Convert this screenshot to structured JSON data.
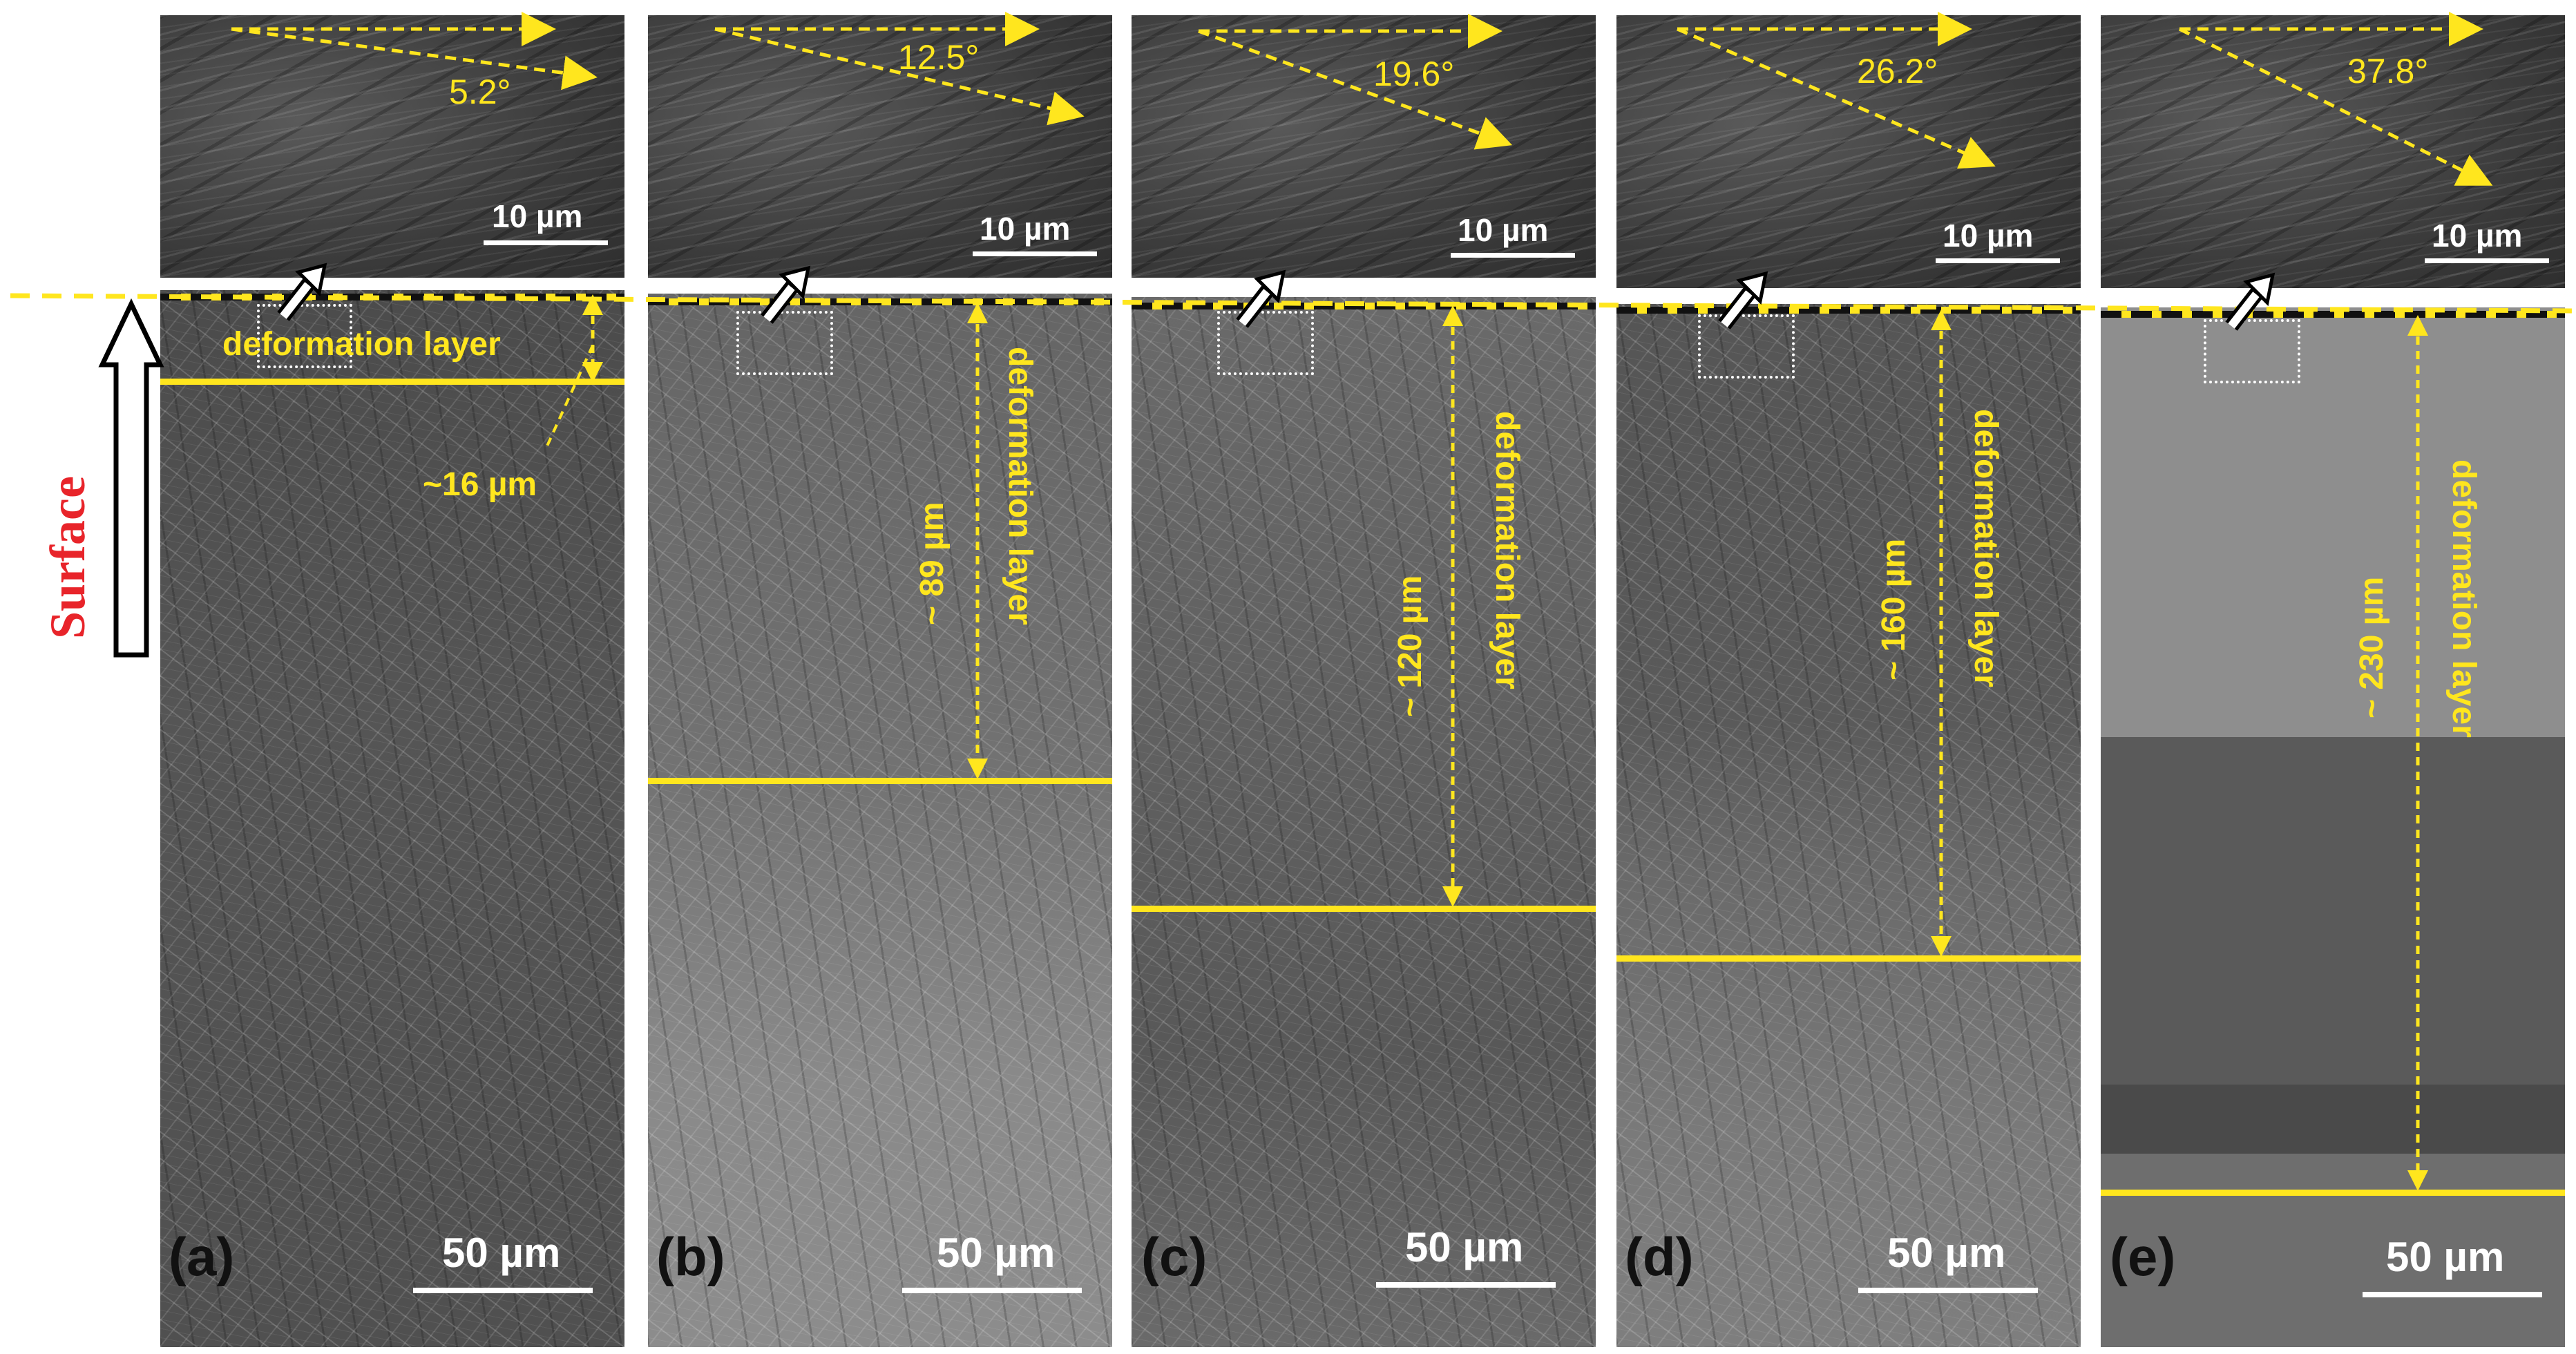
{
  "figure": {
    "surface_label": "Surface",
    "panels": [
      {
        "id": "a",
        "label": "(a)",
        "scale": "50 µm",
        "inset_scale": "10 µm",
        "angle": "5.2°",
        "layer_label": "deformation layer",
        "depth": "~16 µm"
      },
      {
        "id": "b",
        "label": "(b)",
        "scale": "50 µm",
        "inset_scale": "10 µm",
        "angle": "12.5°",
        "layer_label": "deformation layer",
        "depth": "~ 89 µm"
      },
      {
        "id": "c",
        "label": "(c)",
        "scale": "50 µm",
        "inset_scale": "10 µm",
        "angle": "19.6°",
        "layer_label": "deformation layer",
        "depth": "~ 120 µm"
      },
      {
        "id": "d",
        "label": "(d)",
        "scale": "50 µm",
        "inset_scale": "10 µm",
        "angle": "26.2°",
        "layer_label": "deformation layer",
        "depth": "~ 160 µm"
      },
      {
        "id": "e",
        "label": "(e)",
        "scale": "50 µm",
        "inset_scale": "10 µm",
        "angle": "37.8°",
        "layer_label": "deformation layer",
        "depth": "~ 230 µm"
      }
    ]
  },
  "colors": {
    "annotation": "#ffe61e",
    "surface_text": "#e8242a",
    "scale_bar": "#ffffff"
  }
}
